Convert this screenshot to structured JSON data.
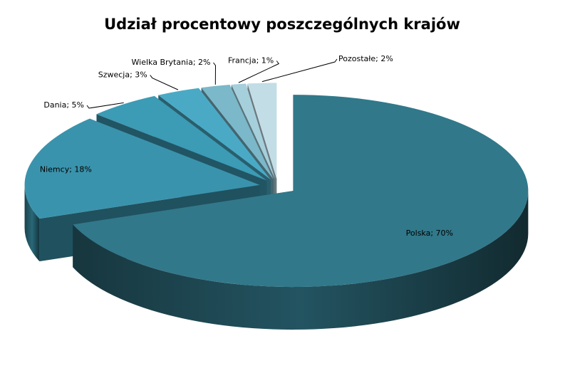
{
  "chart_data": {
    "type": "pie",
    "title": "Udział procentowy poszczególnych krajów",
    "categories": [
      "Polska",
      "Niemcy",
      "Dania",
      "Szwecja",
      "Wielka Brytania",
      "Francja",
      "Pozostałe"
    ],
    "values": [
      70,
      18,
      5,
      3,
      2,
      1,
      2
    ],
    "value_labels": [
      "Polska; 70%",
      "Niemcy; 18%",
      "Dania; 5%",
      "Szwecja; 3%",
      "Wielka Brytania;  2%",
      "Francja; 1%",
      "Pozostałe; 2%"
    ],
    "colors": [
      "#31788a",
      "#3a93ac",
      "#3c9bb5",
      "#4aaac6",
      "#7bb8c9",
      "#a6cfdc",
      "#c3dde6"
    ]
  }
}
